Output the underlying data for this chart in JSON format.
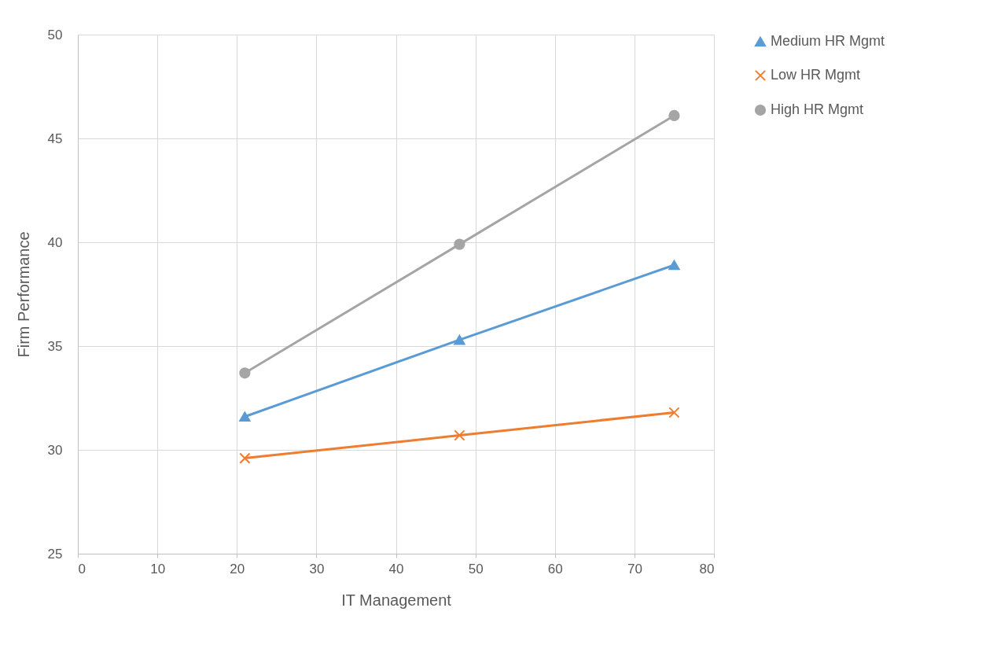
{
  "chart_data": {
    "type": "line",
    "xlabel": "IT Management",
    "ylabel": "Firm Performance",
    "x": [
      21,
      48,
      75
    ],
    "xlim": [
      0,
      80
    ],
    "xticks": [
      0,
      10,
      20,
      30,
      40,
      50,
      60,
      70,
      80
    ],
    "ylim": [
      25,
      50
    ],
    "yticks": [
      25,
      30,
      35,
      40,
      45,
      50
    ],
    "grid": true,
    "legend": "right",
    "line_style": "solid",
    "series": [
      {
        "name": "Medium HR Mgmt",
        "color": "#5b9bd5",
        "marker": "triangle",
        "values": [
          31.6,
          35.3,
          38.9
        ]
      },
      {
        "name": "Low HR Mgmt",
        "color": "#ed7d31",
        "marker": "cross",
        "values": [
          29.6,
          30.7,
          31.8
        ]
      },
      {
        "name": "High HR Mgmt",
        "color": "#a5a5a5",
        "marker": "circle",
        "values": [
          33.7,
          39.9,
          46.1
        ]
      }
    ]
  }
}
